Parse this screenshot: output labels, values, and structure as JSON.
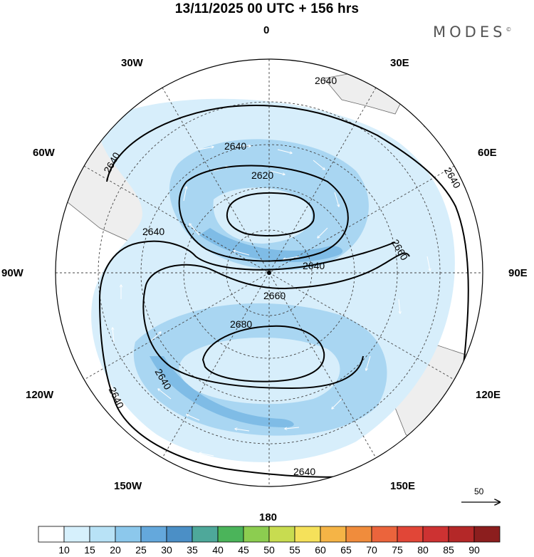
{
  "title": "13/11/2025  00 UTC  + 156 hrs",
  "brand": "MODES",
  "brand_mark": "©",
  "longitude_labels": {
    "top": "0",
    "bottom": "180",
    "left": "90W",
    "right": "90E",
    "nw30": "30W",
    "ne30": "30E",
    "nw60": "60W",
    "ne60": "60E",
    "sw120": "120W",
    "se120": "120E",
    "sw150": "150W",
    "se150": "150E"
  },
  "contour_labels": [
    "2620",
    "2640",
    "2660",
    "2680"
  ],
  "reference_vector": {
    "value": "50"
  },
  "colorbar": {
    "ticks": [
      "10",
      "15",
      "20",
      "25",
      "30",
      "35",
      "40",
      "45",
      "50",
      "55",
      "60",
      "65",
      "70",
      "75",
      "80",
      "85",
      "90"
    ],
    "colors": [
      "#ffffff",
      "#d6f0fc",
      "#b8e2f6",
      "#8cc8ec",
      "#64a8dc",
      "#4b8fc6",
      "#4ea89a",
      "#4bb45a",
      "#8ccd50",
      "#c8dc50",
      "#f5e15a",
      "#f5b446",
      "#f08c3c",
      "#eb643c",
      "#e14637",
      "#cd3232",
      "#b42828",
      "#8c1e1e"
    ]
  },
  "colors": {
    "land": "#eeeeee",
    "jet_weak": "#d7eefb",
    "jet_mid": "#a9d6f2",
    "jet_strong": "#7fbce6",
    "contour": "#000000"
  }
}
